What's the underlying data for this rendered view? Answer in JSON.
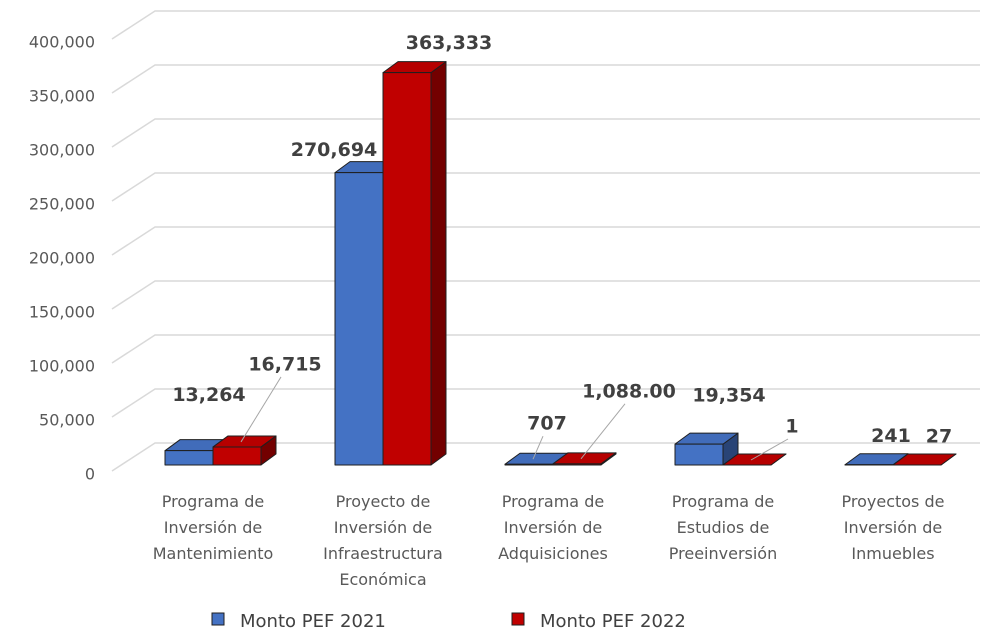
{
  "chart_data": {
    "type": "bar3d",
    "categories": [
      [
        "Programa de",
        "Inversión de",
        "Mantenimiento"
      ],
      [
        "Proyecto de",
        "Inversión de",
        "Infraestructura",
        "Económica"
      ],
      [
        "Programa de",
        "Inversión de",
        "Adquisiciones"
      ],
      [
        "Programa de",
        "Estudios de",
        "Preeinversión"
      ],
      [
        "Proyectos de",
        "Inversión de",
        "Inmuebles"
      ]
    ],
    "series": [
      {
        "name": "Monto PEF 2021",
        "color": "#4472c4",
        "values": [
          13264,
          270694,
          707,
          19354,
          241
        ],
        "value_labels": [
          "13,264",
          "270,694",
          "707",
          "19,354",
          "241"
        ]
      },
      {
        "name": "Monto PEF 2022",
        "color": "#c00000",
        "values": [
          16715,
          363333,
          1088,
          1,
          27
        ],
        "value_labels": [
          "16,715",
          "363,333",
          "1,088.00",
          "1",
          "27"
        ]
      }
    ],
    "ylim": [
      0,
      400000
    ],
    "yticks": [
      0,
      {
        "value": 50000,
        "label": "50,000"
      },
      {
        "value": 100000,
        "label": "100,000"
      },
      {
        "value": 150000,
        "label": "150,000"
      },
      {
        "value": 200000,
        "label": "200,000"
      },
      {
        "value": 250000,
        "label": "250,000"
      },
      {
        "value": 300000,
        "label": "300,000"
      },
      {
        "value": 350000,
        "label": "350,000"
      },
      {
        "value": 400000,
        "label": "400,000"
      }
    ],
    "grid": true,
    "legend": "bottom"
  }
}
